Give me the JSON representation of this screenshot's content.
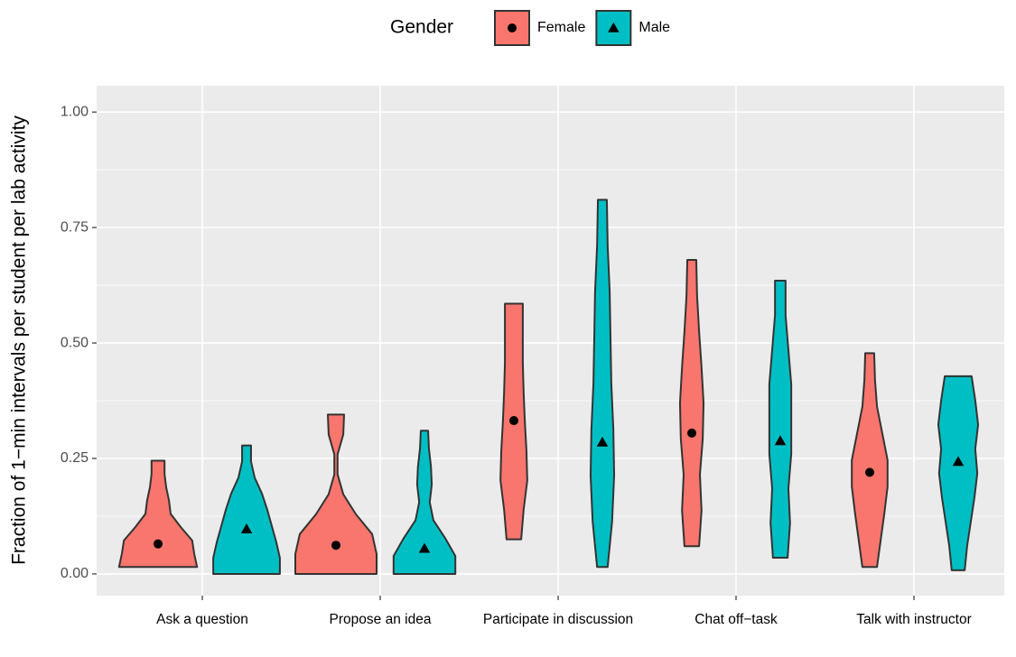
{
  "chart_data": {
    "type": "violin",
    "y_label": "Fraction of 1−min intervals per student per lab activity",
    "legend_title": "Gender",
    "legend_position": "top",
    "grid": true,
    "categories": [
      "Ask a question",
      "Propose an idea",
      "Participate in discussion",
      "Chat off−task",
      "Talk with instructor"
    ],
    "ylim": [
      -0.047,
      1.057
    ],
    "yticks": [
      {
        "value": 0,
        "label": "0.00"
      },
      {
        "value": 0.25,
        "label": "0.25"
      },
      {
        "value": 0.5,
        "label": "0.50"
      },
      {
        "value": 0.75,
        "label": "0.75"
      },
      {
        "value": 1,
        "label": "1.00"
      }
    ],
    "series": [
      {
        "name": "Female",
        "color": "#F8766D",
        "marker": "circle",
        "min": [
          0.015,
          0,
          0.075,
          0.06,
          0.015
        ],
        "max": [
          0.245,
          0.345,
          0.585,
          0.68,
          0.478
        ],
        "mean": [
          0.065,
          0.062,
          0.332,
          0.305,
          0.22
        ],
        "density": [
          [
            0.96,
            0.89,
            0.84,
            0.56,
            0.31,
            0.27,
            0.2,
            0.16,
            0.16
          ],
          [
            1,
            1,
            0.89,
            0.49,
            0.18,
            0.04,
            0.04,
            0.18,
            0.2
          ],
          [
            0.18,
            0.24,
            0.33,
            0.31,
            0.27,
            0.24,
            0.22,
            0.22,
            0.22
          ],
          [
            0.18,
            0.24,
            0.2,
            0.27,
            0.29,
            0.24,
            0.18,
            0.13,
            0.11
          ],
          [
            0.18,
            0.27,
            0.36,
            0.44,
            0.44,
            0.31,
            0.18,
            0.13,
            0.11
          ]
        ]
      },
      {
        "name": "Male",
        "color": "#00BFC4",
        "marker": "triangle",
        "min": [
          0,
          0,
          0.015,
          0.035,
          0.008
        ],
        "max": [
          0.278,
          0.31,
          0.81,
          0.635,
          0.428
        ],
        "mean": [
          0.097,
          0.055,
          0.285,
          0.288,
          0.243
        ],
        "density": [
          [
            0.82,
            0.82,
            0.73,
            0.62,
            0.51,
            0.38,
            0.2,
            0.11,
            0.11
          ],
          [
            0.76,
            0.76,
            0.51,
            0.22,
            0.13,
            0.18,
            0.16,
            0.11,
            0.09
          ],
          [
            0.13,
            0.24,
            0.29,
            0.27,
            0.22,
            0.2,
            0.18,
            0.13,
            0.11
          ],
          [
            0.18,
            0.24,
            0.2,
            0.27,
            0.27,
            0.27,
            0.2,
            0.13,
            0.13
          ],
          [
            0.16,
            0.22,
            0.31,
            0.4,
            0.47,
            0.42,
            0.49,
            0.42,
            0.33
          ]
        ]
      }
    ]
  }
}
